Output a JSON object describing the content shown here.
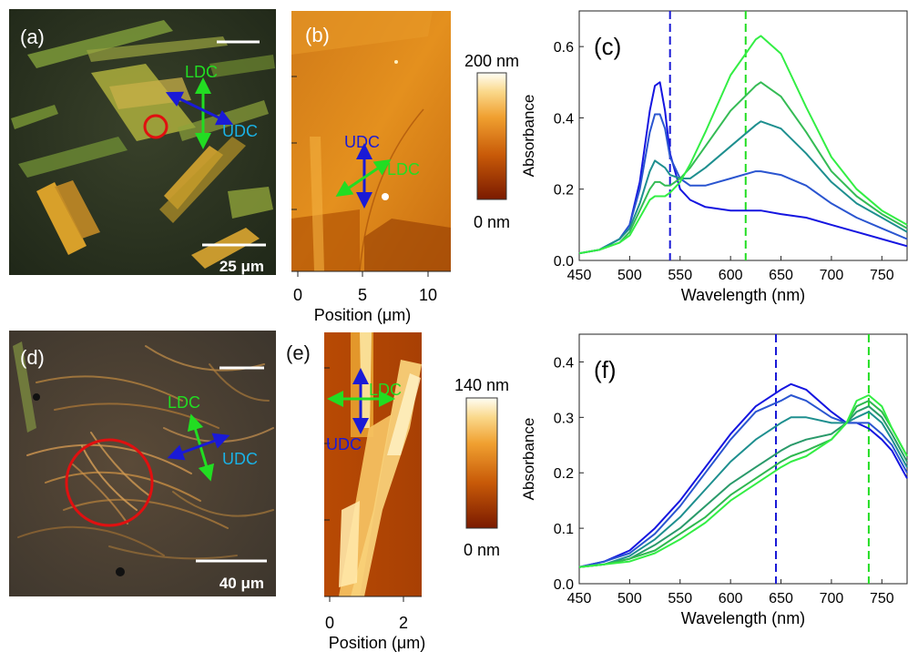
{
  "panels": {
    "a": {
      "label": "(a)",
      "scale_text": "25 μm",
      "ldc": "LDC",
      "udc": "UDC"
    },
    "b": {
      "label": "(b)",
      "ldc": "LDC",
      "udc": "UDC",
      "cbar_max": "200 nm",
      "cbar_min": "0 nm",
      "xlabel": "Position (μm)",
      "xticks": [
        "0",
        "5",
        "10"
      ]
    },
    "d": {
      "label": "(d)",
      "scale_text": "40 μm",
      "ldc": "LDC",
      "udc": "UDC"
    },
    "e": {
      "label": "(e)",
      "ldc": "LDC",
      "udc": "UDC",
      "cbar_max": "140 nm",
      "cbar_min": "0 nm",
      "xlabel": "Position (μm)",
      "xticks": [
        "0",
        "2"
      ]
    }
  },
  "colors": {
    "udc": "#1a1ad6",
    "ldc": "#22dd22",
    "marker": "#e01010"
  },
  "chart_data": [
    {
      "panel": "(c)",
      "type": "line",
      "xlabel": "Wavelength (nm)",
      "ylabel": "Absorbance",
      "xlim": [
        450,
        775
      ],
      "ylim": [
        0,
        0.7
      ],
      "xticks": [
        450,
        500,
        550,
        600,
        650,
        700,
        750
      ],
      "yticks": [
        0.0,
        0.2,
        0.4,
        0.6
      ],
      "vlines": [
        {
          "x": 540,
          "color": "#1a1ad6"
        },
        {
          "x": 615,
          "color": "#22dd22"
        }
      ],
      "x": [
        450,
        470,
        490,
        500,
        510,
        520,
        525,
        530,
        535,
        540,
        550,
        560,
        575,
        600,
        625,
        630,
        650,
        675,
        700,
        725,
        750,
        775
      ],
      "series": [
        {
          "color": "#1515e0",
          "values": [
            0.02,
            0.03,
            0.06,
            0.1,
            0.22,
            0.42,
            0.49,
            0.5,
            0.42,
            0.3,
            0.2,
            0.17,
            0.15,
            0.14,
            0.14,
            0.14,
            0.13,
            0.12,
            0.1,
            0.08,
            0.06,
            0.04
          ]
        },
        {
          "color": "#2a55d0",
          "values": [
            0.02,
            0.03,
            0.06,
            0.1,
            0.2,
            0.36,
            0.41,
            0.41,
            0.37,
            0.29,
            0.23,
            0.21,
            0.21,
            0.23,
            0.25,
            0.25,
            0.24,
            0.21,
            0.16,
            0.12,
            0.09,
            0.06
          ]
        },
        {
          "color": "#1e8f8f",
          "values": [
            0.02,
            0.03,
            0.06,
            0.09,
            0.16,
            0.25,
            0.28,
            0.27,
            0.26,
            0.24,
            0.23,
            0.23,
            0.26,
            0.32,
            0.38,
            0.39,
            0.37,
            0.3,
            0.22,
            0.16,
            0.12,
            0.08
          ]
        },
        {
          "color": "#35bb55",
          "values": [
            0.02,
            0.03,
            0.05,
            0.08,
            0.14,
            0.2,
            0.22,
            0.22,
            0.21,
            0.21,
            0.23,
            0.26,
            0.32,
            0.42,
            0.49,
            0.5,
            0.46,
            0.36,
            0.25,
            0.18,
            0.13,
            0.09
          ]
        },
        {
          "color": "#33ee44",
          "values": [
            0.02,
            0.03,
            0.05,
            0.07,
            0.12,
            0.17,
            0.18,
            0.18,
            0.18,
            0.19,
            0.22,
            0.27,
            0.36,
            0.52,
            0.62,
            0.63,
            0.58,
            0.43,
            0.29,
            0.2,
            0.14,
            0.1
          ]
        }
      ]
    },
    {
      "panel": "(f)",
      "type": "line",
      "xlabel": "Wavelength (nm)",
      "ylabel": "Absorbance",
      "xlim": [
        450,
        775
      ],
      "ylim": [
        0,
        0.45
      ],
      "xticks": [
        450,
        500,
        550,
        600,
        650,
        700,
        750
      ],
      "yticks": [
        0.0,
        0.1,
        0.2,
        0.3,
        0.4
      ],
      "vlines": [
        {
          "x": 645,
          "color": "#1a1ad6"
        },
        {
          "x": 737,
          "color": "#22dd22"
        }
      ],
      "x": [
        450,
        475,
        500,
        525,
        550,
        575,
        600,
        625,
        650,
        660,
        675,
        700,
        715,
        725,
        737,
        750,
        760,
        775
      ],
      "series": [
        {
          "color": "#1515e0",
          "values": [
            0.03,
            0.04,
            0.06,
            0.1,
            0.15,
            0.21,
            0.27,
            0.32,
            0.35,
            0.36,
            0.35,
            0.31,
            0.29,
            0.29,
            0.28,
            0.26,
            0.24,
            0.19
          ]
        },
        {
          "color": "#2a55d0",
          "values": [
            0.03,
            0.04,
            0.055,
            0.09,
            0.14,
            0.2,
            0.26,
            0.31,
            0.33,
            0.34,
            0.33,
            0.3,
            0.29,
            0.29,
            0.29,
            0.27,
            0.25,
            0.2
          ]
        },
        {
          "color": "#1e8f8f",
          "values": [
            0.03,
            0.035,
            0.05,
            0.08,
            0.12,
            0.17,
            0.22,
            0.26,
            0.29,
            0.3,
            0.3,
            0.29,
            0.29,
            0.3,
            0.31,
            0.29,
            0.26,
            0.21
          ]
        },
        {
          "color": "#2a9a6a",
          "values": [
            0.03,
            0.035,
            0.045,
            0.07,
            0.1,
            0.14,
            0.18,
            0.21,
            0.24,
            0.25,
            0.26,
            0.27,
            0.29,
            0.31,
            0.32,
            0.3,
            0.27,
            0.22
          ]
        },
        {
          "color": "#2fb84f",
          "values": [
            0.03,
            0.035,
            0.045,
            0.06,
            0.09,
            0.12,
            0.16,
            0.19,
            0.22,
            0.23,
            0.24,
            0.26,
            0.29,
            0.32,
            0.33,
            0.31,
            0.28,
            0.23
          ]
        },
        {
          "color": "#33ee44",
          "values": [
            0.03,
            0.035,
            0.04,
            0.055,
            0.08,
            0.11,
            0.15,
            0.18,
            0.21,
            0.22,
            0.23,
            0.26,
            0.29,
            0.33,
            0.34,
            0.32,
            0.28,
            0.23
          ]
        }
      ]
    }
  ]
}
